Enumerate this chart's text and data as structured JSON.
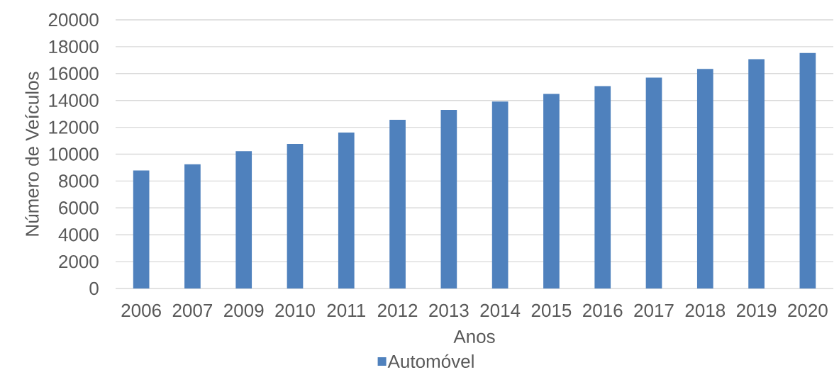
{
  "chart_data": {
    "type": "bar",
    "xlabel": "Anos",
    "ylabel": "Número de Veículos",
    "categories": [
      "2006",
      "2007",
      "2009",
      "2010",
      "2011",
      "2012",
      "2013",
      "2014",
      "2015",
      "2016",
      "2017",
      "2018",
      "2019",
      "2020"
    ],
    "series": [
      {
        "name": "Automóvel",
        "color": "#4f81bd",
        "values": [
          8780,
          9250,
          10220,
          10770,
          11610,
          12560,
          13300,
          13920,
          14480,
          15070,
          15700,
          16350,
          17070,
          17530
        ]
      }
    ],
    "ylim": [
      0,
      20000
    ],
    "yticks": [
      0,
      2000,
      4000,
      6000,
      8000,
      10000,
      12000,
      14000,
      16000,
      18000,
      20000
    ],
    "grid": "y",
    "legend": "bottom"
  }
}
